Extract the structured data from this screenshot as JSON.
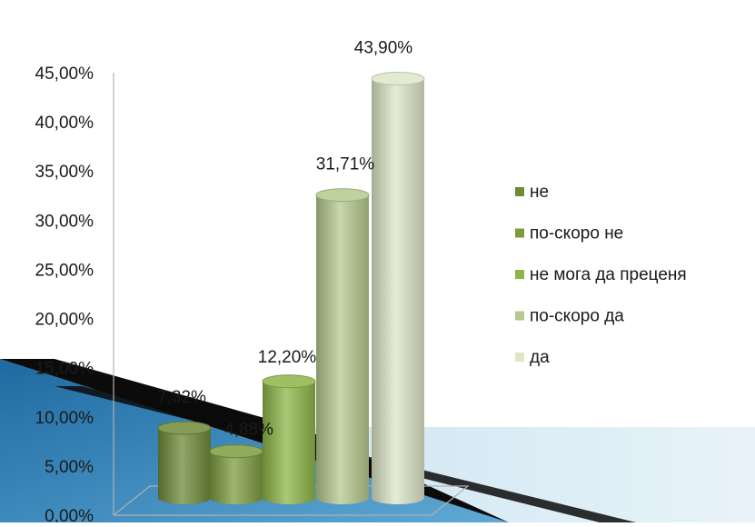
{
  "chart_data": {
    "type": "bar",
    "categories": [
      "не",
      "по-скоро не",
      "не мога да преценя",
      "по-скоро да",
      "да"
    ],
    "values": [
      7.32,
      4.88,
      12.2,
      31.71,
      43.9
    ],
    "value_labels": [
      "7,32%",
      "4,88%",
      "12,20%",
      "31,71%",
      "43,90%"
    ],
    "ylim": [
      0,
      45
    ],
    "yticks": [
      0,
      5,
      10,
      15,
      20,
      25,
      30,
      35,
      40,
      45
    ],
    "ytick_labels": [
      "0,00%",
      "5,00%",
      "10,00%",
      "15,00%",
      "20,00%",
      "25,00%",
      "30,00%",
      "35,00%",
      "40,00%",
      "45,00%"
    ],
    "legend_position": "right",
    "style": "3d-cylinder",
    "colors": [
      "#6e8a38",
      "#7d9c3f",
      "#8db547",
      "#b5c98f",
      "#dde6c7"
    ]
  }
}
